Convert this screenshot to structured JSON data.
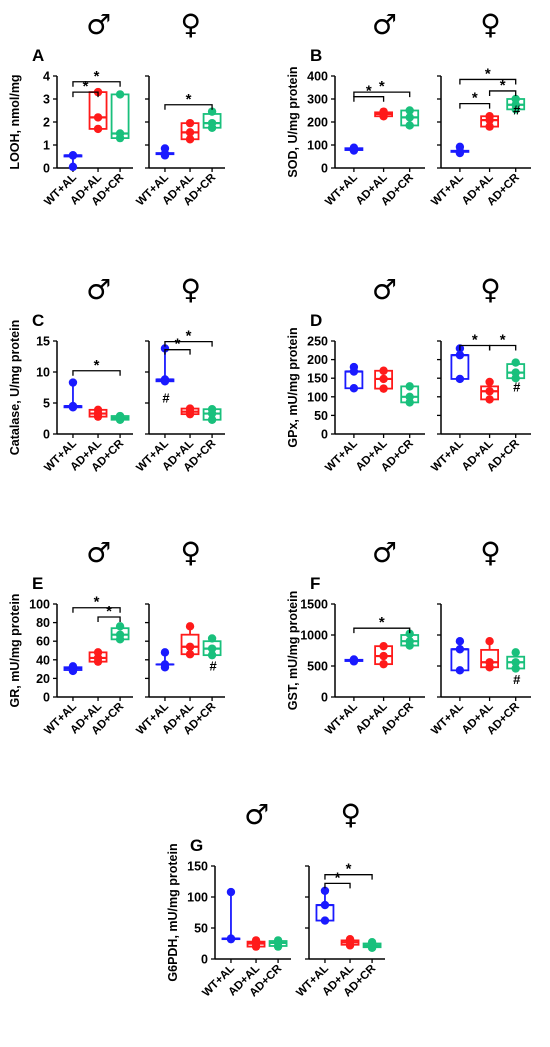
{
  "sex_symbols": {
    "male": "♂",
    "female": "♀"
  },
  "hash_mark": "#",
  "sig_mark": "*",
  "series_colors": {
    "WT+AL": "#1a1aff",
    "AD+AL": "#ff1a1a",
    "AD+CR": "#19c07c"
  },
  "chart_data": [
    {
      "type": "box",
      "panel": "A",
      "ylabel": "LOOH, nmol/mg",
      "ylim": [
        0,
        4
      ],
      "yticks": [
        0,
        1,
        2,
        3,
        4
      ],
      "categories": [
        "WT+AL",
        "AD+AL",
        "AD+CR"
      ],
      "groups": [
        {
          "sex": "male",
          "boxes": [
            {
              "group": "WT+AL",
              "min": 0.05,
              "q1": 0.5,
              "median": 0.55,
              "q3": 0.55,
              "max": 0.55,
              "points": [
                0.05,
                0.55,
                0.55
              ]
            },
            {
              "group": "AD+AL",
              "min": 1.7,
              "q1": 1.7,
              "median": 2.2,
              "q3": 3.3,
              "max": 3.3,
              "points": [
                1.7,
                2.2,
                3.3
              ]
            },
            {
              "group": "AD+CR",
              "min": 1.3,
              "q1": 1.3,
              "median": 1.5,
              "q3": 3.2,
              "max": 3.2,
              "points": [
                1.3,
                1.5,
                3.2
              ]
            }
          ],
          "sig": [
            {
              "from": 0,
              "to": 1,
              "y": 3.3
            },
            {
              "from": 0,
              "to": 2,
              "y": 3.75
            }
          ],
          "hash": []
        },
        {
          "sex": "female",
          "boxes": [
            {
              "group": "WT+AL",
              "min": 0.55,
              "q1": 0.6,
              "median": 0.62,
              "q3": 0.65,
              "max": 0.85,
              "points": [
                0.55,
                0.62,
                0.85
              ]
            },
            {
              "group": "AD+AL",
              "min": 1.25,
              "q1": 1.25,
              "median": 1.55,
              "q3": 1.95,
              "max": 1.95,
              "points": [
                1.25,
                1.55,
                1.95
              ]
            },
            {
              "group": "AD+CR",
              "min": 1.75,
              "q1": 1.75,
              "median": 1.95,
              "q3": 2.35,
              "max": 2.45,
              "points": [
                1.75,
                1.95,
                2.45
              ]
            }
          ],
          "sig": [
            {
              "from": 0,
              "to": 2,
              "y": 2.75
            }
          ],
          "hash": []
        }
      ]
    },
    {
      "type": "box",
      "panel": "B",
      "ylabel": "SOD, U/mg protein",
      "ylim": [
        0,
        400
      ],
      "yticks": [
        0,
        100,
        200,
        300,
        400
      ],
      "categories": [
        "WT+AL",
        "AD+AL",
        "AD+CR"
      ],
      "groups": [
        {
          "sex": "male",
          "boxes": [
            {
              "group": "WT+AL",
              "min": 76,
              "q1": 78,
              "median": 83,
              "q3": 86,
              "max": 88,
              "points": [
                76,
                83,
                88
              ]
            },
            {
              "group": "AD+AL",
              "min": 225,
              "q1": 225,
              "median": 235,
              "q3": 242,
              "max": 245,
              "points": [
                225,
                235,
                245
              ]
            },
            {
              "group": "AD+CR",
              "min": 185,
              "q1": 185,
              "median": 220,
              "q3": 250,
              "max": 250,
              "points": [
                185,
                220,
                250
              ]
            }
          ],
          "sig": [
            {
              "from": 0,
              "to": 1,
              "y": 310
            },
            {
              "from": 0,
              "to": 2,
              "y": 330
            }
          ],
          "hash": []
        },
        {
          "sex": "female",
          "boxes": [
            {
              "group": "WT+AL",
              "min": 65,
              "q1": 70,
              "median": 72,
              "q3": 75,
              "max": 92,
              "points": [
                65,
                72,
                92
              ]
            },
            {
              "group": "AD+AL",
              "min": 180,
              "q1": 180,
              "median": 208,
              "q3": 225,
              "max": 225,
              "points": [
                180,
                208,
                225
              ]
            },
            {
              "group": "AD+CR",
              "min": 255,
              "q1": 255,
              "median": 275,
              "q3": 300,
              "max": 300,
              "points": [
                255,
                275,
                300
              ]
            }
          ],
          "sig": [
            {
              "from": 0,
              "to": 1,
              "y": 280
            },
            {
              "from": 1,
              "to": 2,
              "y": 335
            },
            {
              "from": 0,
              "to": 2,
              "y": 385
            }
          ],
          "hash": [
            {
              "box": 2,
              "y": 255
            }
          ]
        }
      ]
    },
    {
      "type": "box",
      "panel": "C",
      "ylabel": "Catalase, U/mg protein",
      "ylim": [
        0,
        15
      ],
      "yticks": [
        0,
        5,
        10,
        15
      ],
      "categories": [
        "WT+AL",
        "AD+AL",
        "AD+CR"
      ],
      "groups": [
        {
          "sex": "male",
          "boxes": [
            {
              "group": "WT+AL",
              "min": 4.3,
              "q1": 4.3,
              "median": 4.5,
              "q3": 4.5,
              "max": 8.3,
              "points": [
                4.3,
                4.5,
                8.3
              ]
            },
            {
              "group": "AD+AL",
              "min": 2.8,
              "q1": 2.8,
              "median": 3.3,
              "q3": 3.9,
              "max": 3.9,
              "points": [
                2.8,
                3.3,
                3.9
              ]
            },
            {
              "group": "AD+CR",
              "min": 2.3,
              "q1": 2.3,
              "median": 2.6,
              "q3": 2.9,
              "max": 2.9,
              "points": [
                2.3,
                2.6,
                2.9
              ]
            }
          ],
          "sig": [
            {
              "from": 0,
              "to": 2,
              "y": 10.2
            }
          ],
          "hash": []
        },
        {
          "sex": "female",
          "boxes": [
            {
              "group": "WT+AL",
              "min": 8.5,
              "q1": 8.5,
              "median": 8.8,
              "q3": 8.8,
              "max": 13.8,
              "points": [
                8.5,
                8.8,
                13.8
              ]
            },
            {
              "group": "AD+AL",
              "min": 3.2,
              "q1": 3.2,
              "median": 3.6,
              "q3": 4.1,
              "max": 4.1,
              "points": [
                3.2,
                3.6,
                4.1
              ]
            },
            {
              "group": "AD+CR",
              "min": 2.3,
              "q1": 2.3,
              "median": 3.3,
              "q3": 4.0,
              "max": 4.0,
              "points": [
                2.3,
                3.3,
                4.0
              ]
            }
          ],
          "sig": [
            {
              "from": 0,
              "to": 1,
              "y": 13.6
            },
            {
              "from": 0,
              "to": 2,
              "y": 14.9
            }
          ],
          "hash": [
            {
              "box": 0,
              "y": 5.9
            }
          ]
        }
      ]
    },
    {
      "type": "box",
      "panel": "D",
      "ylabel": "GPx, mU/mg protein",
      "ylim": [
        0,
        250
      ],
      "yticks": [
        0,
        50,
        100,
        150,
        200,
        250
      ],
      "categories": [
        "WT+AL",
        "AD+AL",
        "AD+CR"
      ],
      "groups": [
        {
          "sex": "male",
          "boxes": [
            {
              "group": "WT+AL",
              "min": 123,
              "q1": 123,
              "median": 168,
              "q3": 168,
              "max": 180,
              "points": [
                123,
                168,
                180
              ]
            },
            {
              "group": "AD+AL",
              "min": 122,
              "q1": 122,
              "median": 148,
              "q3": 170,
              "max": 170,
              "points": [
                122,
                148,
                170
              ]
            },
            {
              "group": "AD+CR",
              "min": 85,
              "q1": 85,
              "median": 100,
              "q3": 128,
              "max": 128,
              "points": [
                85,
                100,
                128
              ]
            }
          ],
          "sig": [],
          "hash": []
        },
        {
          "sex": "female",
          "boxes": [
            {
              "group": "WT+AL",
              "min": 148,
              "q1": 148,
              "median": 212,
              "q3": 212,
              "max": 230,
              "points": [
                148,
                212,
                230
              ]
            },
            {
              "group": "AD+AL",
              "min": 93,
              "q1": 93,
              "median": 115,
              "q3": 128,
              "max": 140,
              "points": [
                93,
                115,
                140
              ]
            },
            {
              "group": "AD+CR",
              "min": 150,
              "q1": 150,
              "median": 165,
              "q3": 188,
              "max": 192,
              "points": [
                150,
                165,
                192
              ]
            }
          ],
          "sig": [
            {
              "from": 0,
              "to": 1,
              "y": 238
            },
            {
              "from": 1,
              "to": 2,
              "y": 238
            }
          ],
          "hash": [
            {
              "box": 2,
              "y": 128
            }
          ]
        }
      ]
    },
    {
      "type": "box",
      "panel": "E",
      "ylabel": "GR, mU/mg protein",
      "ylim": [
        0,
        100
      ],
      "yticks": [
        0,
        20,
        40,
        60,
        80,
        100
      ],
      "categories": [
        "WT+AL",
        "AD+AL",
        "AD+CR"
      ],
      "groups": [
        {
          "sex": "male",
          "boxes": [
            {
              "group": "WT+AL",
              "min": 28,
              "q1": 29,
              "median": 31,
              "q3": 32,
              "max": 33,
              "points": [
                28,
                31,
                33
              ]
            },
            {
              "group": "AD+AL",
              "min": 38,
              "q1": 38,
              "median": 42,
              "q3": 48,
              "max": 48,
              "points": [
                38,
                42,
                48
              ]
            },
            {
              "group": "AD+CR",
              "min": 62,
              "q1": 62,
              "median": 67,
              "q3": 74,
              "max": 76,
              "points": [
                62,
                67,
                76
              ]
            }
          ],
          "sig": [
            {
              "from": 1,
              "to": 2,
              "y": 86
            },
            {
              "from": 0,
              "to": 2,
              "y": 96
            }
          ],
          "hash": []
        },
        {
          "sex": "female",
          "boxes": [
            {
              "group": "WT+AL",
              "min": 32,
              "q1": 35,
              "median": 35,
              "q3": 35,
              "max": 48,
              "points": [
                32,
                35,
                48
              ]
            },
            {
              "group": "AD+AL",
              "min": 46,
              "q1": 46,
              "median": 54,
              "q3": 67,
              "max": 76,
              "points": [
                46,
                54,
                76
              ]
            },
            {
              "group": "AD+CR",
              "min": 45,
              "q1": 45,
              "median": 52,
              "q3": 60,
              "max": 63,
              "points": [
                45,
                52,
                63
              ]
            }
          ],
          "sig": [],
          "hash": [
            {
              "box": 2,
              "y": 34
            }
          ]
        }
      ]
    },
    {
      "type": "box",
      "panel": "F",
      "ylabel": "GST, mU/mg protein",
      "ylim": [
        0,
        1500
      ],
      "yticks": [
        0,
        500,
        1000,
        1500
      ],
      "categories": [
        "WT+AL",
        "AD+AL",
        "AD+CR"
      ],
      "groups": [
        {
          "sex": "male",
          "boxes": [
            {
              "group": "WT+AL",
              "min": 575,
              "q1": 580,
              "median": 590,
              "q3": 600,
              "max": 605,
              "points": [
                575,
                590,
                605
              ]
            },
            {
              "group": "AD+AL",
              "min": 530,
              "q1": 530,
              "median": 660,
              "q3": 820,
              "max": 820,
              "points": [
                530,
                660,
                820
              ]
            },
            {
              "group": "AD+CR",
              "min": 830,
              "q1": 830,
              "median": 900,
              "q3": 1000,
              "max": 1020,
              "points": [
                830,
                900,
                1020
              ]
            }
          ],
          "sig": [
            {
              "from": 0,
              "to": 2,
              "y": 1110
            }
          ],
          "hash": []
        },
        {
          "sex": "female",
          "boxes": [
            {
              "group": "WT+AL",
              "min": 430,
              "q1": 430,
              "median": 770,
              "q3": 770,
              "max": 900,
              "points": [
                430,
                770,
                900
              ]
            },
            {
              "group": "AD+AL",
              "min": 480,
              "q1": 480,
              "median": 560,
              "q3": 760,
              "max": 900,
              "points": [
                480,
                560,
                900
              ]
            },
            {
              "group": "AD+CR",
              "min": 460,
              "q1": 460,
              "median": 560,
              "q3": 650,
              "max": 720,
              "points": [
                460,
                560,
                720
              ]
            }
          ],
          "sig": [],
          "hash": [
            {
              "box": 2,
              "y": 290
            }
          ]
        }
      ]
    },
    {
      "type": "box",
      "panel": "G",
      "ylabel": "G6PDH, mU/mg protein",
      "ylim": [
        0,
        150
      ],
      "yticks": [
        0,
        50,
        100,
        150
      ],
      "categories": [
        "WT+AL",
        "AD+AL",
        "AD+CR"
      ],
      "groups": [
        {
          "sex": "male",
          "boxes": [
            {
              "group": "WT+AL",
              "min": 32,
              "q1": 32,
              "median": 33,
              "q3": 33,
              "max": 108,
              "points": [
                32,
                33,
                108
              ]
            },
            {
              "group": "AD+AL",
              "min": 20,
              "q1": 20,
              "median": 25,
              "q3": 28,
              "max": 30,
              "points": [
                20,
                25,
                30
              ]
            },
            {
              "group": "AD+CR",
              "min": 20,
              "q1": 21,
              "median": 26,
              "q3": 29,
              "max": 30,
              "points": [
                20,
                26,
                30
              ]
            }
          ],
          "sig": [],
          "hash": []
        },
        {
          "sex": "female",
          "boxes": [
            {
              "group": "WT+AL",
              "min": 62,
              "q1": 62,
              "median": 87,
              "q3": 87,
              "max": 110,
              "points": [
                62,
                87,
                110
              ]
            },
            {
              "group": "AD+AL",
              "min": 22,
              "q1": 23,
              "median": 27,
              "q3": 30,
              "max": 32,
              "points": [
                22,
                27,
                32
              ]
            },
            {
              "group": "AD+CR",
              "min": 18,
              "q1": 19,
              "median": 22,
              "q3": 25,
              "max": 27,
              "points": [
                18,
                22,
                27
              ]
            }
          ],
          "sig": [
            {
              "from": 0,
              "to": 1,
              "y": 122
            },
            {
              "from": 0,
              "to": 2,
              "y": 136
            }
          ],
          "hash": []
        }
      ]
    }
  ]
}
